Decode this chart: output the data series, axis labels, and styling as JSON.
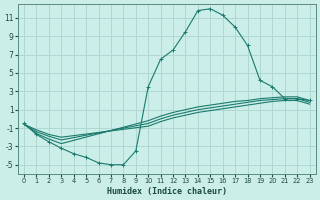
{
  "xlabel": "Humidex (Indice chaleur)",
  "background_color": "#cceee8",
  "grid_color": "#b0d8d2",
  "line_color": "#1a7a6e",
  "xlim": [
    -0.5,
    23.5
  ],
  "ylim": [
    -6.0,
    12.5
  ],
  "xticks": [
    0,
    1,
    2,
    3,
    4,
    5,
    6,
    7,
    8,
    9,
    10,
    11,
    12,
    13,
    14,
    15,
    16,
    17,
    18,
    19,
    20,
    21,
    22,
    23
  ],
  "yticks": [
    -5,
    -3,
    -1,
    1,
    3,
    5,
    7,
    9,
    11
  ],
  "curve_main_x": [
    0,
    1,
    2,
    3,
    4,
    5,
    6,
    7,
    8,
    9,
    10,
    11,
    12,
    13,
    14,
    15,
    16,
    17,
    18,
    19,
    20,
    21,
    22,
    23
  ],
  "curve_main_y": [
    -0.5,
    -1.7,
    -2.5,
    -3.2,
    -3.8,
    -4.2,
    -4.8,
    -5.0,
    -5.0,
    -3.5,
    3.5,
    6.5,
    7.5,
    9.5,
    11.8,
    12.0,
    11.3,
    10.0,
    8.0,
    4.2,
    3.5,
    2.2,
    2.2,
    2.0
  ],
  "line_flat1_x": [
    0,
    1,
    2,
    3,
    10,
    11,
    12,
    13,
    14,
    15,
    16,
    17,
    18,
    19,
    20,
    21,
    22,
    23
  ],
  "line_flat1_y": [
    -0.6,
    -1.6,
    -2.2,
    -2.7,
    -0.2,
    0.3,
    0.7,
    1.0,
    1.3,
    1.5,
    1.7,
    1.9,
    2.0,
    2.2,
    2.3,
    2.4,
    2.4,
    2.0
  ],
  "line_flat2_x": [
    0,
    1,
    2,
    3,
    10,
    11,
    12,
    13,
    14,
    15,
    16,
    17,
    18,
    19,
    20,
    21,
    22,
    23
  ],
  "line_flat2_y": [
    -0.6,
    -1.4,
    -1.9,
    -2.3,
    -0.5,
    0.0,
    0.4,
    0.7,
    1.0,
    1.2,
    1.4,
    1.6,
    1.8,
    2.0,
    2.1,
    2.2,
    2.2,
    1.8
  ],
  "line_flat3_x": [
    0,
    1,
    2,
    3,
    10,
    11,
    12,
    13,
    14,
    15,
    16,
    17,
    18,
    19,
    20,
    21,
    22,
    23
  ],
  "line_flat3_y": [
    -0.6,
    -1.2,
    -1.7,
    -2.0,
    -0.8,
    -0.3,
    0.1,
    0.4,
    0.7,
    0.9,
    1.1,
    1.3,
    1.5,
    1.7,
    1.9,
    2.0,
    2.0,
    1.6
  ]
}
